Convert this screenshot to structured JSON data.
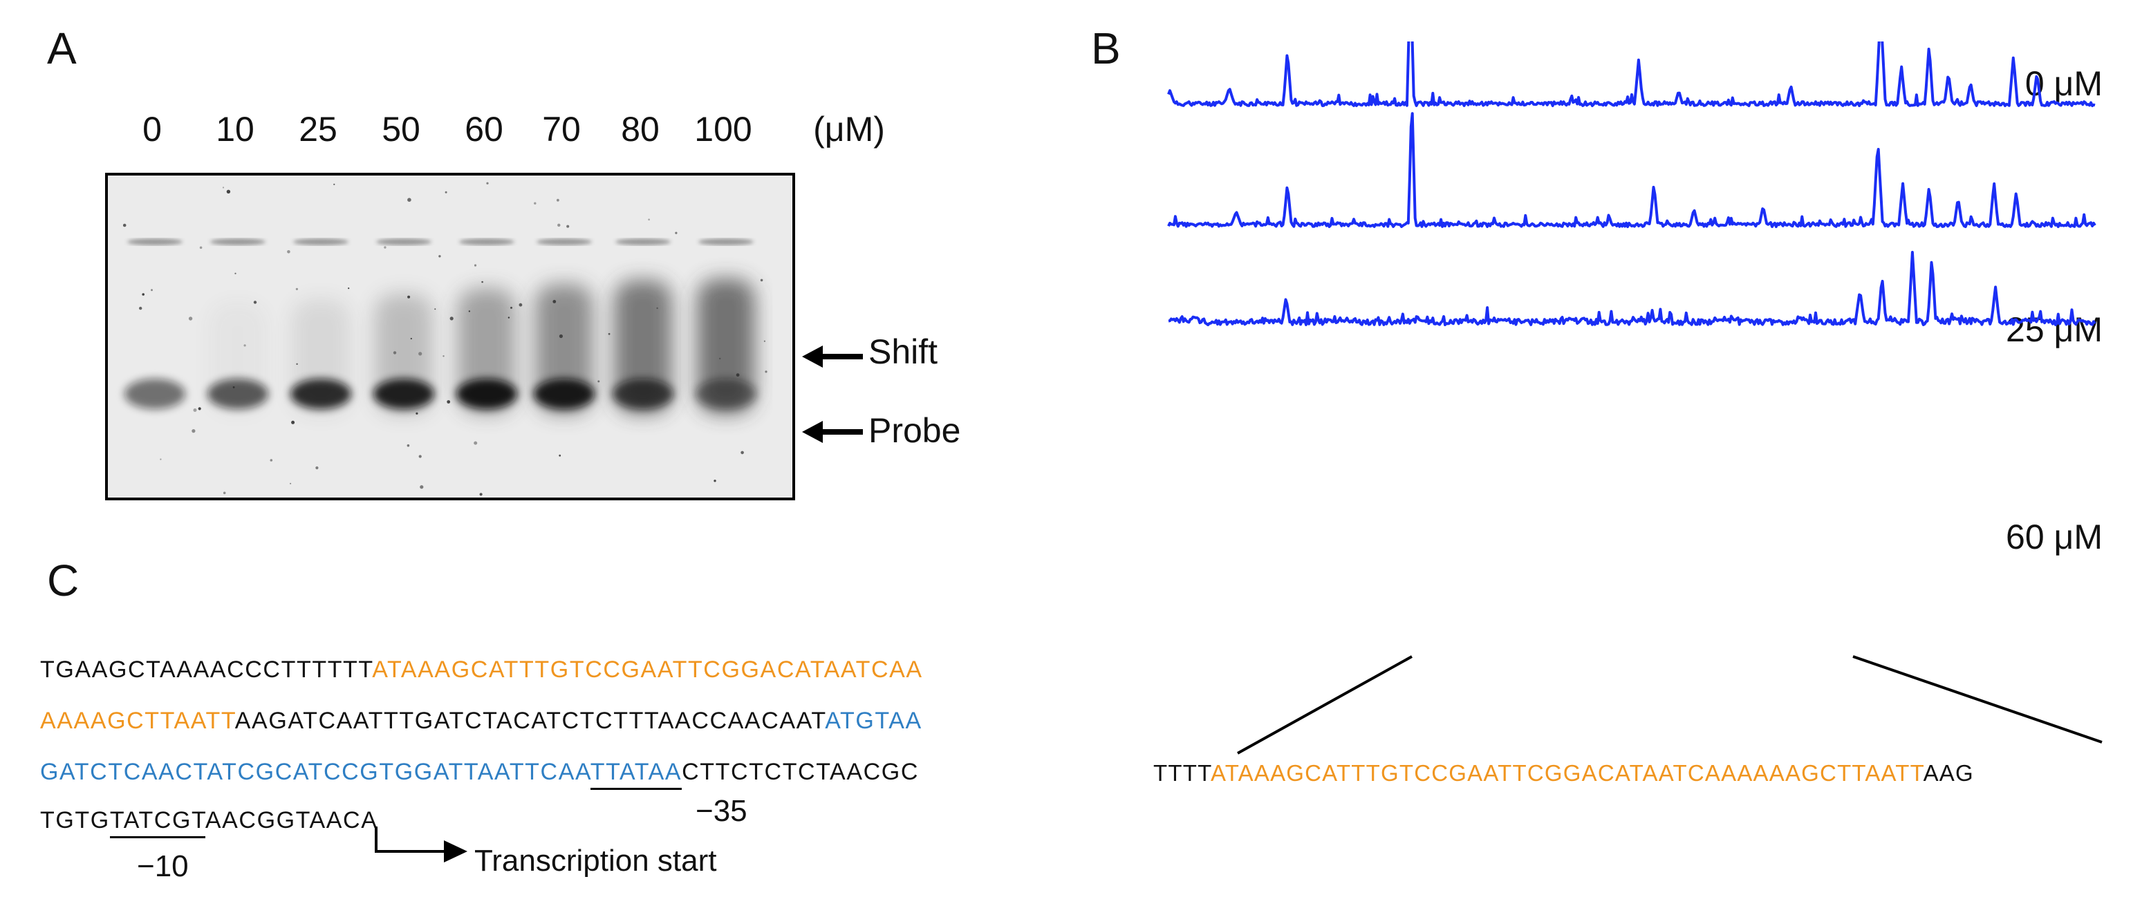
{
  "panels": {
    "a": {
      "label": "A",
      "lanes": [
        "0",
        "10",
        "25",
        "50",
        "60",
        "70",
        "80",
        "100"
      ],
      "unit": "(μM)",
      "shift_label": "Shift",
      "probe_label": "Probe",
      "probe_band_intensity": [
        0.55,
        0.65,
        0.85,
        0.9,
        0.95,
        0.92,
        0.7,
        0.45
      ],
      "shift_smear_intensity": [
        0.0,
        0.05,
        0.15,
        0.35,
        0.55,
        0.7,
        0.85,
        0.9
      ]
    },
    "b": {
      "label": "B",
      "traces": [
        {
          "label": "0 μM",
          "color": "#1a2ef5"
        },
        {
          "label": "25 μM",
          "color": "#1a2ef5"
        },
        {
          "label": "60 μM",
          "color": "#1a2ef5"
        }
      ],
      "sequence": {
        "prefix": "TTTT",
        "highlight": "ATAAAGCATTTGTCCGAATTCGGACATAATCAAAAAAGCTTAATT",
        "suffix": "AAG"
      }
    },
    "c": {
      "label": "C",
      "line1": {
        "plain": "TGAAGCTAAAACCCTTTTTT",
        "orange": "ATAAAGCATTTGTCCGAATTCGGACATAATCAA"
      },
      "line2": {
        "orange": "AAAAGCTTAATT",
        "plain": "AAGATCAATTTGATCTACATCTCTTTAACCAACAAT",
        "blue": "ATGTAA"
      },
      "line3": {
        "blue": "GATCTCAACTATCGCATCCGTGGATTAATTCAA",
        "blue_underlined": "TTATAA",
        "plain": "CTTCTCTCTAACGC"
      },
      "line4": {
        "pre": "TGTG",
        "underlined": "TATCGT",
        "post": "AACGGTAACA"
      },
      "minus35": "−35",
      "minus10": "−10",
      "transcription_start": "Transcription start"
    }
  }
}
